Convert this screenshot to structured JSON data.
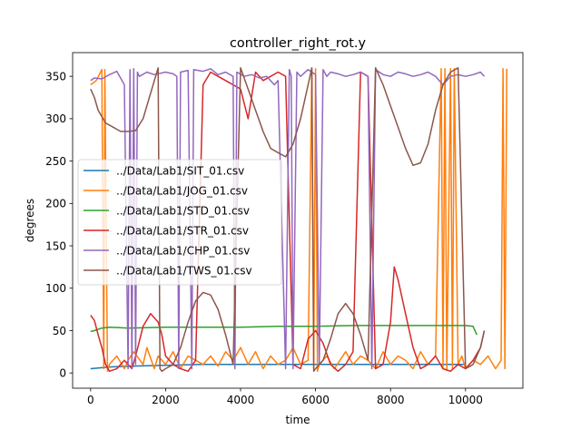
{
  "chart_data": {
    "type": "line",
    "title": "controller_right_rot.y",
    "xlabel": "time",
    "ylabel": "degrees",
    "xlim": [
      -480,
      11530
    ],
    "ylim": [
      -18,
      378
    ],
    "xticks": [
      0,
      2000,
      4000,
      6000,
      8000,
      10000
    ],
    "yticks": [
      0,
      50,
      100,
      150,
      200,
      250,
      300,
      350
    ],
    "grid": false,
    "legend_position": "center-left",
    "series": [
      {
        "name": "../Data/Lab1/SIT_01.csv",
        "color": "#1f77b4",
        "x": [
          0,
          500,
          1000,
          2000,
          3000,
          4000,
          5000,
          6000,
          7000,
          8000,
          9000,
          10000
        ],
        "y": [
          5,
          7,
          8,
          9,
          10,
          10,
          10,
          10,
          10,
          10,
          10,
          10
        ]
      },
      {
        "name": "../Data/Lab1/JOG_01.csv",
        "color": "#ff7f0e",
        "x": [
          0,
          150,
          300,
          350,
          380,
          450,
          500,
          700,
          900,
          1000,
          1150,
          1400,
          1500,
          1700,
          1800,
          2000,
          2200,
          2400,
          2600,
          2800,
          3000,
          3200,
          3400,
          3600,
          3800,
          4000,
          4200,
          4400,
          4600,
          4800,
          5000,
          5200,
          5400,
          5600,
          5800,
          5900,
          5950,
          6000,
          6050,
          6100,
          6300,
          6500,
          6800,
          7000,
          7200,
          7400,
          7600,
          7800,
          8000,
          8200,
          8400,
          8600,
          8800,
          9000,
          9200,
          9350,
          9400,
          9450,
          9500,
          9600,
          9650,
          9700,
          9800,
          9900,
          10000,
          10200,
          10400,
          10600,
          10800,
          10950,
          11000,
          11050,
          11100
        ],
        "y": [
          340,
          345,
          358,
          5,
          358,
          2,
          10,
          20,
          5,
          15,
          25,
          10,
          30,
          5,
          20,
          10,
          25,
          5,
          20,
          15,
          10,
          20,
          8,
          25,
          15,
          30,
          10,
          25,
          5,
          20,
          10,
          15,
          30,
          10,
          15,
          359,
          5,
          359,
          2,
          10,
          20,
          5,
          25,
          10,
          20,
          15,
          5,
          25,
          10,
          20,
          15,
          5,
          25,
          10,
          20,
          359,
          5,
          359,
          3,
          359,
          5,
          359,
          10,
          20,
          5,
          15,
          10,
          20,
          5,
          15,
          359,
          5,
          359
        ]
      },
      {
        "name": "../Data/Lab1/STD_01.csv",
        "color": "#2ca02c",
        "x": [
          0,
          100,
          300,
          500,
          1000,
          2000,
          3000,
          4000,
          5000,
          6000,
          7000,
          8000,
          9000,
          10000,
          10200,
          10300
        ],
        "y": [
          49,
          50,
          53,
          54,
          53,
          54,
          54,
          54,
          55,
          55,
          56,
          56,
          56,
          56,
          55,
          45
        ]
      },
      {
        "name": "../Data/Lab1/STR_01.csv",
        "color": "#d62728",
        "x": [
          0,
          100,
          200,
          300,
          400,
          500,
          700,
          900,
          1000,
          1100,
          1200,
          1400,
          1600,
          1800,
          1900,
          2000,
          2200,
          2400,
          2600,
          2800,
          3000,
          3200,
          3400,
          3600,
          3800,
          4000,
          4200,
          4400,
          4600,
          4800,
          5000,
          5200,
          5400,
          5600,
          5800,
          6000,
          6200,
          6400,
          6600,
          6800,
          7000,
          7200,
          7400,
          7600,
          7800,
          8000,
          8100,
          8200,
          8400,
          8600,
          8800,
          9000,
          9200,
          9400,
          9600,
          9800,
          10000,
          10200,
          10400,
          10500
        ],
        "y": [
          68,
          62,
          45,
          30,
          10,
          2,
          5,
          15,
          10,
          5,
          20,
          55,
          70,
          60,
          45,
          20,
          10,
          5,
          2,
          15,
          340,
          355,
          350,
          345,
          340,
          335,
          300,
          355,
          345,
          350,
          355,
          350,
          10,
          5,
          40,
          50,
          35,
          10,
          2,
          10,
          25,
          355,
          350,
          5,
          10,
          60,
          125,
          110,
          70,
          30,
          5,
          10,
          20,
          5,
          2,
          10,
          5,
          15,
          30,
          50
        ]
      },
      {
        "name": "../Data/Lab1/CHP_01.csv",
        "color": "#9467bd",
        "x": [
          0,
          100,
          300,
          500,
          700,
          900,
          1000,
          1050,
          1100,
          1150,
          1200,
          1250,
          1300,
          1500,
          1700,
          2000,
          2200,
          2300,
          2350,
          2400,
          2600,
          2700,
          2750,
          3000,
          3200,
          3400,
          3600,
          3800,
          3850,
          3900,
          4100,
          4300,
          4500,
          4700,
          4900,
          5000,
          5200,
          5300,
          5350,
          5400,
          5500,
          5600,
          5800,
          6000,
          6100,
          6200,
          6300,
          6400,
          6600,
          6800,
          7000,
          7200,
          7400,
          7500,
          7600,
          7800,
          8000,
          8200,
          8400,
          8600,
          8800,
          9000,
          9200,
          9400,
          9600,
          9800,
          10000,
          10200,
          10400,
          10500
        ],
        "y": [
          345,
          348,
          347,
          352,
          356,
          340,
          5,
          358,
          5,
          359,
          10,
          355,
          350,
          355,
          352,
          355,
          353,
          350,
          5,
          355,
          357,
          5,
          358,
          356,
          359,
          352,
          355,
          350,
          5,
          355,
          350,
          352,
          348,
          350,
          340,
          345,
          5,
          358,
          350,
          5,
          355,
          350,
          358,
          352,
          10,
          358,
          350,
          355,
          353,
          350,
          352,
          355,
          350,
          5,
          358,
          352,
          350,
          355,
          353,
          350,
          352,
          355,
          350,
          340,
          350,
          352,
          350,
          352,
          355,
          350
        ]
      },
      {
        "name": "../Data/Lab1/TWS_01.csv",
        "color": "#8c564b",
        "x": [
          0,
          100,
          200,
          400,
          600,
          800,
          1000,
          1200,
          1400,
          1600,
          1800,
          1850,
          1900,
          2000,
          2200,
          2400,
          2600,
          2800,
          3000,
          3200,
          3400,
          3600,
          3800,
          4000,
          4200,
          4400,
          4600,
          4800,
          5000,
          5200,
          5400,
          5600,
          5800,
          5900,
          5950,
          6000,
          6200,
          6400,
          6600,
          6800,
          7000,
          7200,
          7400,
          7600,
          7800,
          8000,
          8200,
          8400,
          8600,
          8800,
          9000,
          9200,
          9400,
          9600,
          9800,
          10000,
          10200,
          10400,
          10500
        ],
        "y": [
          335,
          325,
          310,
          295,
          290,
          285,
          285,
          286,
          300,
          330,
          360,
          5,
          2,
          5,
          10,
          30,
          60,
          85,
          95,
          92,
          75,
          45,
          10,
          360,
          335,
          310,
          285,
          265,
          260,
          255,
          270,
          300,
          340,
          360,
          2,
          5,
          15,
          40,
          70,
          82,
          70,
          45,
          15,
          360,
          340,
          315,
          290,
          265,
          245,
          248,
          270,
          310,
          340,
          355,
          360,
          5,
          10,
          30,
          50
        ]
      }
    ]
  }
}
